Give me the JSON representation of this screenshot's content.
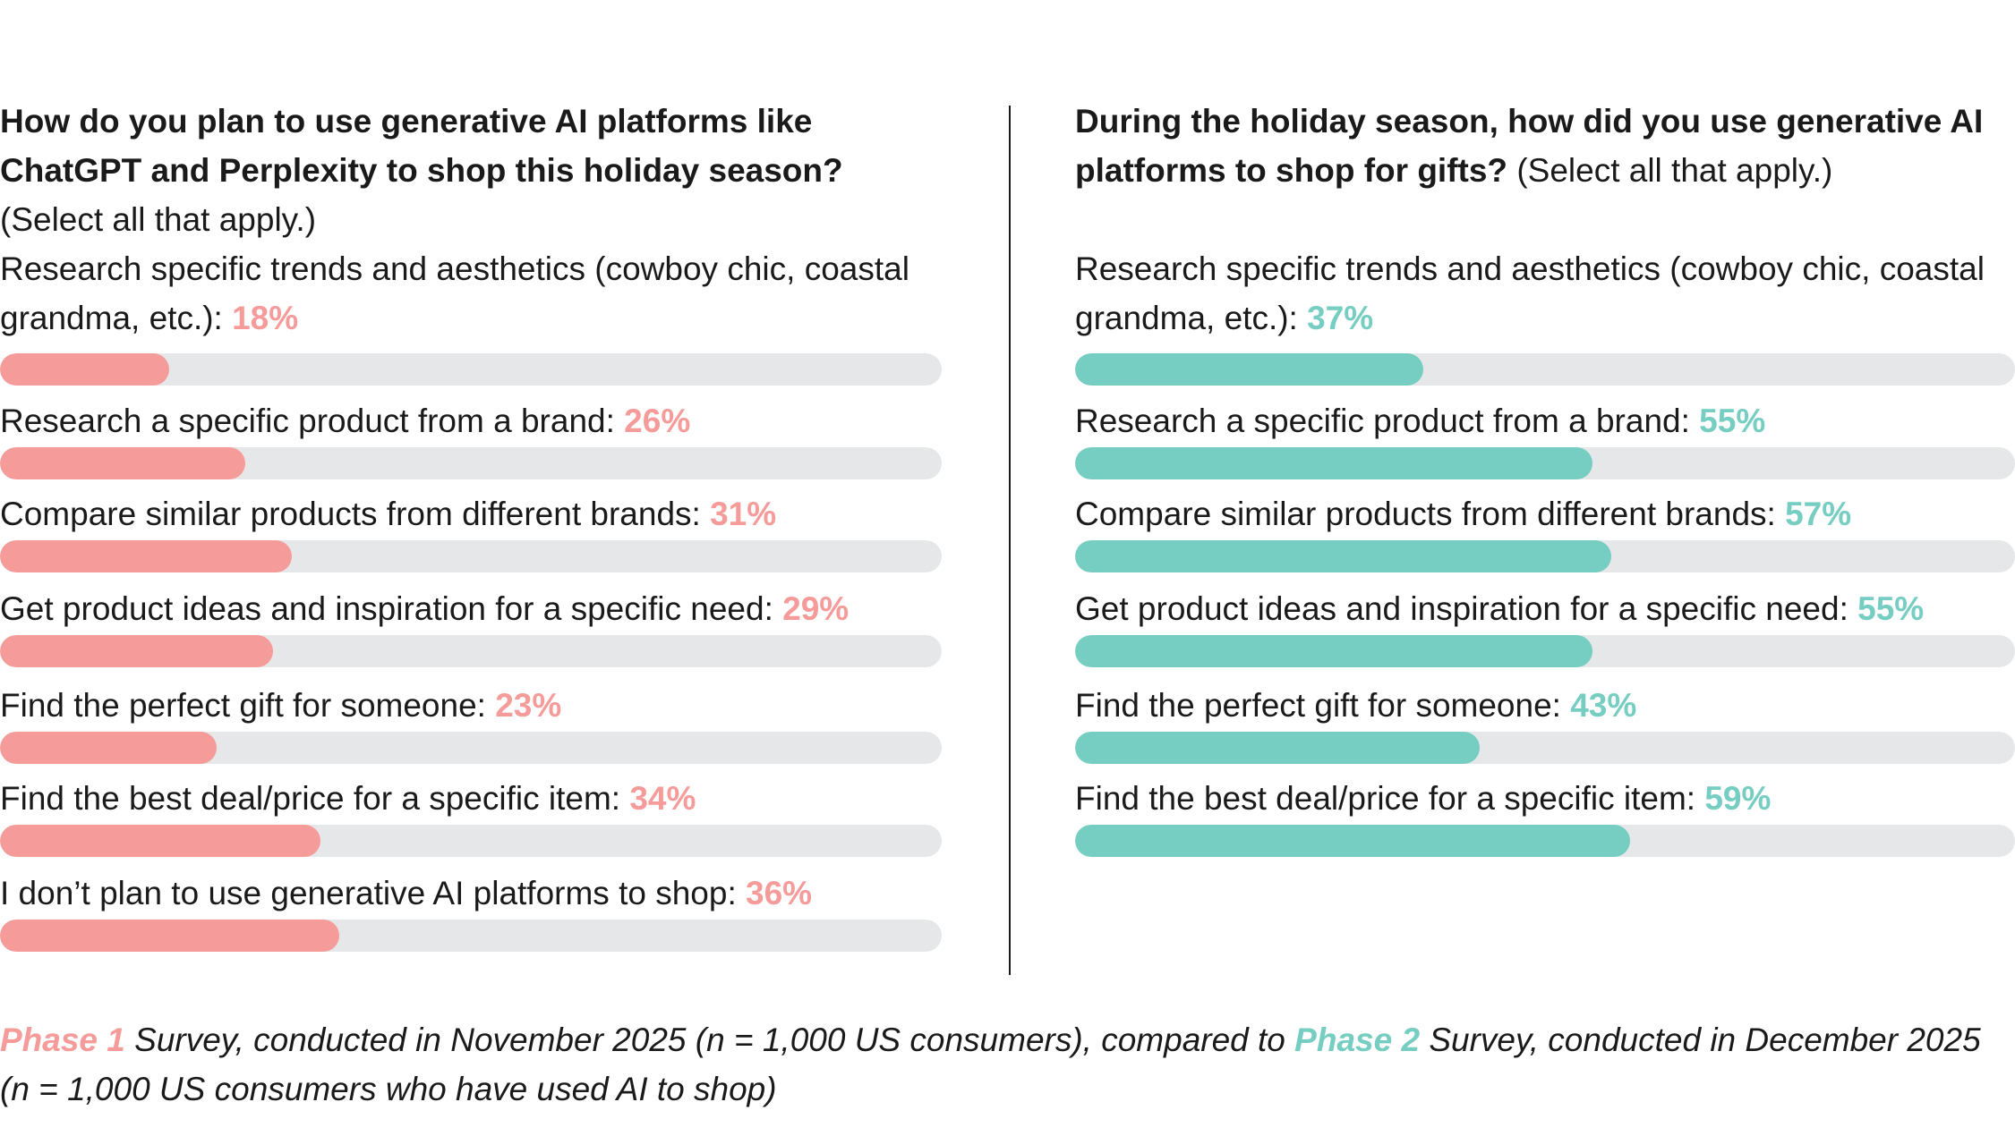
{
  "colors": {
    "phase1": "#f59b9a",
    "phase2": "#76cdc1",
    "track": "#e6e7e8"
  },
  "left": {
    "question_bold": "How do you plan to use generative AI platforms like ChatGPT and Perplexity to shop this holiday season?",
    "question_note": "(Select all that apply.)"
  },
  "right": {
    "question_bold": "During the holiday season, how did you use generative AI platforms to shop for gifts?",
    "question_note": "(Select all that apply.)"
  },
  "chart_data": [
    {
      "type": "bar",
      "orientation": "horizontal",
      "categories": [
        "Research specific trends and aesthetics (cowboy chic, coastal grandma, etc.):",
        "Research a specific product from a brand:",
        "Compare similar products from different brands:",
        "Get product ideas and inspiration for a specific need:",
        "Find the perfect gift for someone:",
        "Find the best deal/price for a specific item:",
        "I don’t plan to use generative AI platforms to shop:"
      ],
      "values": [
        18,
        26,
        31,
        29,
        23,
        34,
        36
      ],
      "value_labels": [
        "18%",
        "26%",
        "31%",
        "29%",
        "23%",
        "34%",
        "36%"
      ],
      "xlim": [
        0,
        100
      ],
      "color": "#f59b9a"
    },
    {
      "type": "bar",
      "orientation": "horizontal",
      "categories": [
        "Research specific trends and aesthetics (cowboy chic, coastal grandma, etc.):",
        "Research a specific product from a brand:",
        "Compare similar products from different brands:",
        "Get product ideas and inspiration for a specific need:",
        "Find the perfect gift for someone:",
        "Find the best deal/price for a specific item:"
      ],
      "values": [
        37,
        55,
        57,
        55,
        43,
        59
      ],
      "value_labels": [
        "37%",
        "55%",
        "57%",
        "55%",
        "43%",
        "59%"
      ],
      "xlim": [
        0,
        100
      ],
      "color": "#76cdc1"
    }
  ],
  "footer": {
    "phase1": "Phase 1",
    "text1": " Survey, conducted in November 2025 (n = 1,000 US consumers), compared to ",
    "phase2": "Phase 2",
    "text2": " Survey, conducted in December 2025 (n = 1,000 US consumers who have used AI to shop)"
  }
}
